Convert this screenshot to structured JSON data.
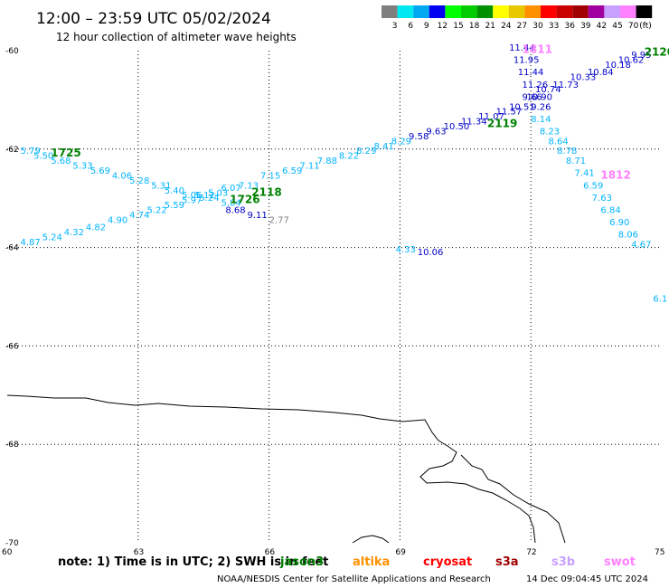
{
  "header": {
    "title": "12:00  –  23:59  UTC  05/02/2024",
    "subtitle": "12 hour collection of altimeter wave heights"
  },
  "legend": {
    "unit": "(ft)",
    "bins": [
      {
        "label": "3",
        "color": "#7f7f7f"
      },
      {
        "label": "6",
        "color": "#00e8f0"
      },
      {
        "label": "9",
        "color": "#00a8f0"
      },
      {
        "label": "12",
        "color": "#0000f0"
      },
      {
        "label": "15",
        "color": "#00ff00"
      },
      {
        "label": "18",
        "color": "#00cc00"
      },
      {
        "label": "21",
        "color": "#009000"
      },
      {
        "label": "24",
        "color": "#ffff00"
      },
      {
        "label": "27",
        "color": "#e8c800"
      },
      {
        "label": "30",
        "color": "#ff9000"
      },
      {
        "label": "33",
        "color": "#ff0000"
      },
      {
        "label": "36",
        "color": "#c80000"
      },
      {
        "label": "39",
        "color": "#a00000"
      },
      {
        "label": "42",
        "color": "#a000a0"
      },
      {
        "label": "45",
        "color": "#c8a0ff"
      },
      {
        "label": "70",
        "color": "#ff80ff"
      },
      {
        "label": "",
        "color": "#000000"
      }
    ]
  },
  "chart_data": {
    "type": "scatter",
    "x_ticks": [
      "60",
      "63",
      "66",
      "69",
      "72",
      "75"
    ],
    "y_ticks": [
      "-60",
      "-62",
      "-64",
      "-66",
      "-68",
      "-70"
    ],
    "xlim": [
      60,
      75
    ],
    "ylim": [
      -70,
      -60
    ],
    "grid": true,
    "observations": [
      {
        "x": 60.3,
        "y": -62.1,
        "text": "5.79",
        "color": "#00b4ff"
      },
      {
        "x": 60.6,
        "y": -62.2,
        "text": "5.50",
        "color": "#00b4ff"
      },
      {
        "x": 61.0,
        "y": -62.3,
        "text": "5.68",
        "color": "#00b4ff"
      },
      {
        "x": 61.5,
        "y": -62.4,
        "text": "5.33",
        "color": "#00b4ff"
      },
      {
        "x": 61.9,
        "y": -62.5,
        "text": "5.69",
        "color": "#00b4ff"
      },
      {
        "x": 62.4,
        "y": -62.6,
        "text": "4.06",
        "color": "#00b4ff"
      },
      {
        "x": 62.8,
        "y": -62.7,
        "text": "5.28",
        "color": "#00b4ff"
      },
      {
        "x": 63.3,
        "y": -62.8,
        "text": "5.31",
        "color": "#00b4ff"
      },
      {
        "x": 63.6,
        "y": -62.9,
        "text": "5.40",
        "color": "#00b4ff"
      },
      {
        "x": 64.0,
        "y": -63.0,
        "text": "5.06",
        "color": "#00b4ff"
      },
      {
        "x": 64.3,
        "y": -63.0,
        "text": "5.12",
        "color": "#00b4ff"
      },
      {
        "x": 64.6,
        "y": -62.95,
        "text": "5.03",
        "color": "#00b4ff"
      },
      {
        "x": 65.3,
        "y": -62.8,
        "text": "7.13",
        "color": "#00b4ff"
      },
      {
        "x": 65.8,
        "y": -62.6,
        "text": "7.15",
        "color": "#00b4ff"
      },
      {
        "x": 66.3,
        "y": -62.5,
        "text": "6.59",
        "color": "#00b4ff"
      },
      {
        "x": 66.7,
        "y": -62.4,
        "text": "7.11",
        "color": "#00b4ff"
      },
      {
        "x": 67.1,
        "y": -62.3,
        "text": "7.88",
        "color": "#00b4ff"
      },
      {
        "x": 67.6,
        "y": -62.2,
        "text": "8.22",
        "color": "#00b4ff"
      },
      {
        "x": 68.0,
        "y": -62.1,
        "text": "8.29",
        "color": "#00b4ff"
      },
      {
        "x": 68.4,
        "y": -62.0,
        "text": "8.41",
        "color": "#00b4ff"
      },
      {
        "x": 68.8,
        "y": -61.9,
        "text": "8.29",
        "color": "#00b4ff"
      },
      {
        "x": 69.2,
        "y": -61.8,
        "text": "9.58",
        "color": "#0000c8"
      },
      {
        "x": 69.6,
        "y": -61.7,
        "text": "9.63",
        "color": "#0000c8"
      },
      {
        "x": 70.0,
        "y": -61.6,
        "text": "10.50",
        "color": "#0000c8"
      },
      {
        "x": 70.4,
        "y": -61.5,
        "text": "11.34",
        "color": "#0000c8"
      },
      {
        "x": 70.8,
        "y": -61.4,
        "text": "11.07",
        "color": "#0000c8"
      },
      {
        "x": 71.2,
        "y": -61.3,
        "text": "11.57",
        "color": "#0000c8"
      },
      {
        "x": 71.5,
        "y": -61.2,
        "text": "10.51",
        "color": "#0000c8"
      },
      {
        "x": 71.8,
        "y": -61.0,
        "text": "9.66",
        "color": "#0000c8"
      },
      {
        "x": 72.1,
        "y": -60.85,
        "text": "10.74",
        "color": "#0000c8"
      },
      {
        "x": 72.5,
        "y": -60.75,
        "text": "11.73",
        "color": "#0000c8"
      },
      {
        "x": 72.9,
        "y": -60.6,
        "text": "10.33",
        "color": "#0000c8"
      },
      {
        "x": 73.3,
        "y": -60.5,
        "text": "10.84",
        "color": "#0000c8"
      },
      {
        "x": 73.7,
        "y": -60.35,
        "text": "10.18",
        "color": "#0000c8"
      },
      {
        "x": 74.0,
        "y": -60.25,
        "text": "10.62",
        "color": "#0000c8"
      },
      {
        "x": 74.3,
        "y": -60.15,
        "text": "9.95",
        "color": "#0000c8"
      },
      {
        "x": 71.5,
        "y": -60.0,
        "text": "11.44",
        "color": "#0000c8"
      },
      {
        "x": 71.6,
        "y": -60.25,
        "text": "11.95",
        "color": "#0000c8"
      },
      {
        "x": 71.7,
        "y": -60.5,
        "text": "11.44",
        "color": "#0000c8"
      },
      {
        "x": 71.8,
        "y": -60.75,
        "text": "11.26",
        "color": "#0000c8"
      },
      {
        "x": 71.9,
        "y": -61.0,
        "text": "10.90",
        "color": "#0000c8"
      },
      {
        "x": 72.0,
        "y": -61.2,
        "text": "9.26",
        "color": "#0000c8"
      },
      {
        "x": 72.0,
        "y": -61.45,
        "text": "8.14",
        "color": "#00b4ff"
      },
      {
        "x": 72.2,
        "y": -61.7,
        "text": "8.23",
        "color": "#00b4ff"
      },
      {
        "x": 72.4,
        "y": -61.9,
        "text": "8.64",
        "color": "#00b4ff"
      },
      {
        "x": 72.6,
        "y": -62.1,
        "text": "8.78",
        "color": "#00b4ff"
      },
      {
        "x": 72.8,
        "y": -62.3,
        "text": "8.71",
        "color": "#00b4ff"
      },
      {
        "x": 73.0,
        "y": -62.55,
        "text": "7.41",
        "color": "#00b4ff"
      },
      {
        "x": 73.2,
        "y": -62.8,
        "text": "6.59",
        "color": "#00b4ff"
      },
      {
        "x": 73.4,
        "y": -63.05,
        "text": "7.63",
        "color": "#00b4ff"
      },
      {
        "x": 73.6,
        "y": -63.3,
        "text": "6.84",
        "color": "#00b4ff"
      },
      {
        "x": 73.8,
        "y": -63.55,
        "text": "6.90",
        "color": "#00b4ff"
      },
      {
        "x": 74.0,
        "y": -63.8,
        "text": "8.06",
        "color": "#00b4ff"
      },
      {
        "x": 74.3,
        "y": -64.0,
        "text": "4.67",
        "color": "#00b4ff"
      },
      {
        "x": 74.8,
        "y": -65.1,
        "text": "6.1",
        "color": "#00b4ff"
      },
      {
        "x": 60.3,
        "y": -63.95,
        "text": "4.87",
        "color": "#00b4ff"
      },
      {
        "x": 60.8,
        "y": -63.85,
        "text": "5.24",
        "color": "#00b4ff"
      },
      {
        "x": 61.3,
        "y": -63.75,
        "text": "4.32",
        "color": "#00b4ff"
      },
      {
        "x": 61.8,
        "y": -63.65,
        "text": "4.82",
        "color": "#00b4ff"
      },
      {
        "x": 62.3,
        "y": -63.5,
        "text": "4.90",
        "color": "#00b4ff"
      },
      {
        "x": 62.8,
        "y": -63.4,
        "text": "4.74",
        "color": "#00b4ff"
      },
      {
        "x": 63.2,
        "y": -63.3,
        "text": "5.22",
        "color": "#00b4ff"
      },
      {
        "x": 63.6,
        "y": -63.2,
        "text": "5.59",
        "color": "#00b4ff"
      },
      {
        "x": 64.0,
        "y": -63.1,
        "text": "5.97",
        "color": "#00b4ff"
      },
      {
        "x": 64.4,
        "y": -63.05,
        "text": "5.24",
        "color": "#00b4ff"
      },
      {
        "x": 64.9,
        "y": -62.85,
        "text": "6.07",
        "color": "#00b4ff"
      },
      {
        "x": 64.9,
        "y": -63.15,
        "text": "5.84",
        "color": "#00b4ff"
      },
      {
        "x": 65.0,
        "y": -63.3,
        "text": "8.68",
        "color": "#0000c8"
      },
      {
        "x": 65.5,
        "y": -63.4,
        "text": "9.11",
        "color": "#0000c8"
      },
      {
        "x": 66.0,
        "y": -63.5,
        "text": "2.77",
        "color": "#7f7f7f"
      },
      {
        "x": 68.9,
        "y": -64.1,
        "text": "4.33",
        "color": "#00b4ff"
      },
      {
        "x": 69.4,
        "y": -64.15,
        "text": "10.06",
        "color": "#0000c8"
      }
    ],
    "time_markers": [
      {
        "x": 61.0,
        "y": -62.15,
        "text": "1725",
        "color": "#008000"
      },
      {
        "x": 65.1,
        "y": -63.1,
        "text": "1726",
        "color": "#008000"
      },
      {
        "x": 65.6,
        "y": -62.95,
        "text": "2118",
        "color": "#008000"
      },
      {
        "x": 71.0,
        "y": -61.55,
        "text": "2119",
        "color": "#008000"
      },
      {
        "x": 74.6,
        "y": -60.1,
        "text": "2120",
        "color": "#008000"
      },
      {
        "x": 71.8,
        "y": -60.05,
        "text": "1811",
        "color": "#ff80ff"
      },
      {
        "x": 73.6,
        "y": -62.6,
        "text": "1812",
        "color": "#ff80ff"
      }
    ]
  },
  "notes": {
    "text": "note:  1) Time is in UTC;  2) SWH is in feet",
    "satellites": [
      {
        "name": "jason3",
        "color": "#008000"
      },
      {
        "name": "altika",
        "color": "#ff9000"
      },
      {
        "name": "cryosat",
        "color": "#ff0000"
      },
      {
        "name": "s3a",
        "color": "#a00000"
      },
      {
        "name": "s3b",
        "color": "#c8a0ff"
      },
      {
        "name": "swot",
        "color": "#ff80ff"
      }
    ]
  },
  "footer": {
    "credit": "NOAA/NESDIS Center for Satellite Applications and Research",
    "timestamp": "14 Dec 09:04:45 UTC 2024"
  }
}
